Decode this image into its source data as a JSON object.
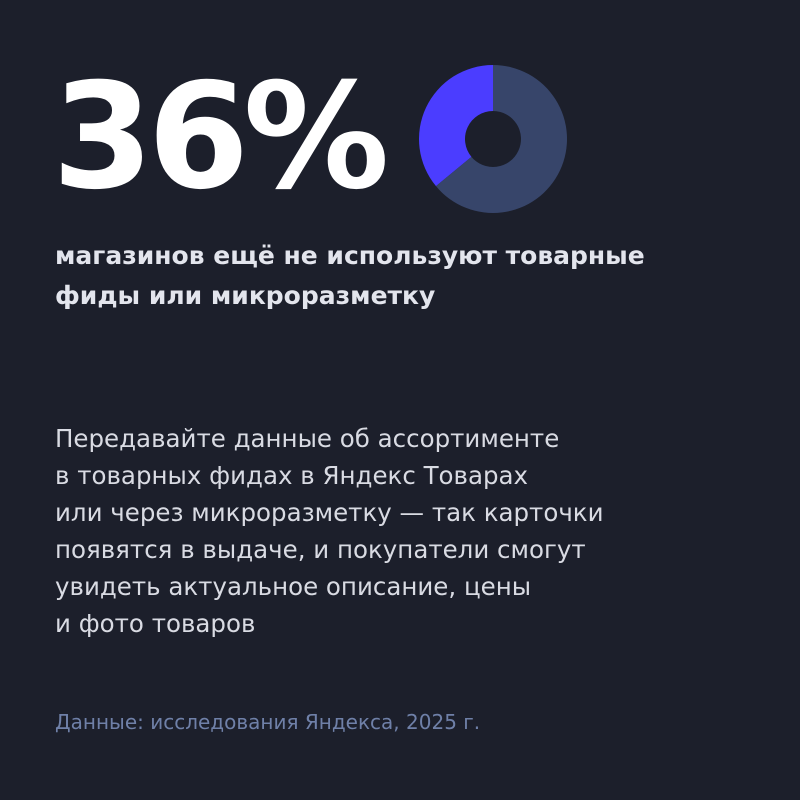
{
  "stat": {
    "value_text": "36%"
  },
  "chart_data": {
    "type": "pie",
    "donut": true,
    "values": [
      36,
      64
    ],
    "colors": [
      "#4b3dff",
      "#37456a"
    ],
    "start_angle_deg": 0,
    "direction": "counterclockwise"
  },
  "headline": {
    "lines": [
      "магазинов ещё не используют товарные",
      "фиды или микроразметку"
    ]
  },
  "body": {
    "lines": [
      "Передавайте данные об ассортименте",
      "в товарных фидах в Яндекс Товарах",
      "или через микроразметку — так карточки",
      "появятся в выдаче, и покупатели смогут",
      "увидеть актуальное описание, цены",
      "и фото товаров"
    ]
  },
  "source": {
    "text": "Данные: исследования Яндекса, 2025 г."
  },
  "colors": {
    "background": "#1c1f2b",
    "accent": "#4b3dff",
    "donut_rest": "#37456a",
    "source_text": "#6f80a8"
  }
}
